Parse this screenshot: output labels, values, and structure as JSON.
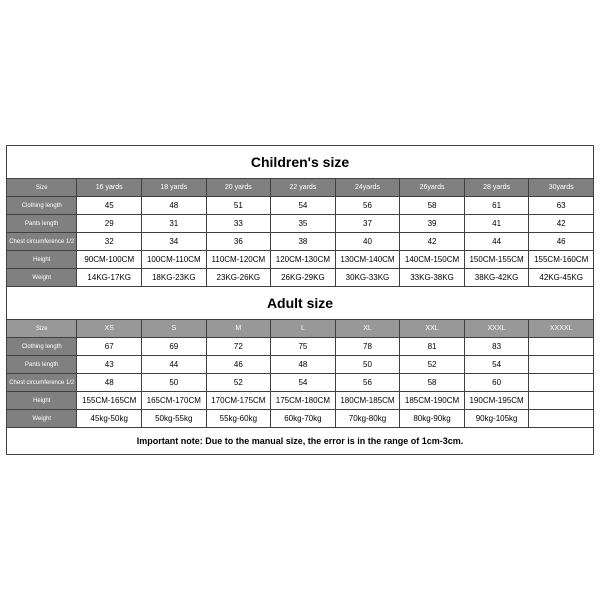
{
  "children": {
    "title": "Children's size",
    "headers": [
      "Size",
      "16 yards",
      "18 yards",
      "20 yards",
      "22 yards",
      "24yards",
      "26yards",
      "28 yards",
      "30yards"
    ],
    "rows": [
      {
        "label": "Clothing length",
        "cells": [
          "45",
          "48",
          "51",
          "54",
          "56",
          "58",
          "61",
          "63"
        ]
      },
      {
        "label": "Pants length",
        "cells": [
          "29",
          "31",
          "33",
          "35",
          "37",
          "39",
          "41",
          "42"
        ]
      },
      {
        "label": "Chest circumference 1/2",
        "cells": [
          "32",
          "34",
          "36",
          "38",
          "40",
          "42",
          "44",
          "46"
        ]
      },
      {
        "label": "Height",
        "cells": [
          "90CM-100CM",
          "100CM-110CM",
          "110CM-120CM",
          "120CM-130CM",
          "130CM-140CM",
          "140CM-150CM",
          "150CM-155CM",
          "155CM-160CM"
        ]
      },
      {
        "label": "Weight",
        "cells": [
          "14KG-17KG",
          "18KG-23KG",
          "23KG-26KG",
          "26KG-29KG",
          "30KG-33KG",
          "33KG-38KG",
          "38KG-42KG",
          "42KG-45KG"
        ]
      }
    ]
  },
  "adult": {
    "title": "Adult size",
    "headers": [
      "Size",
      "XS",
      "S",
      "M",
      "L",
      "XL",
      "XXL",
      "XXXL",
      "XXXXL"
    ],
    "rows": [
      {
        "label": "Clothing length",
        "cells": [
          "67",
          "69",
          "72",
          "75",
          "78",
          "81",
          "83",
          ""
        ]
      },
      {
        "label": "Pants length",
        "cells": [
          "43",
          "44",
          "46",
          "48",
          "50",
          "52",
          "54",
          ""
        ]
      },
      {
        "label": "Chest circumference 1/2",
        "cells": [
          "48",
          "50",
          "52",
          "54",
          "56",
          "58",
          "60",
          ""
        ]
      },
      {
        "label": "Height",
        "cells": [
          "155CM-165CM",
          "165CM-170CM",
          "170CM-175CM",
          "175CM-180CM",
          "180CM-185CM",
          "185CM-190CM",
          "190CM-195CM",
          ""
        ]
      },
      {
        "label": "Weight",
        "cells": [
          "45kg-50kg",
          "50kg-55kg",
          "55kg-60kg",
          "60kg-70kg",
          "70kg-80kg",
          "80kg-90kg",
          "90kg-105kg",
          ""
        ]
      }
    ]
  },
  "note": "Important note: Due to the manual size, the error is in the range of 1cm-3cm.",
  "style": {
    "header_bg": "#808080",
    "adult_header_bg": "#989898",
    "border_color": "#404040",
    "title_fontsize": 14,
    "cell_fontsize": 8,
    "label_fontsize": 6,
    "note_fontsize": 9
  }
}
